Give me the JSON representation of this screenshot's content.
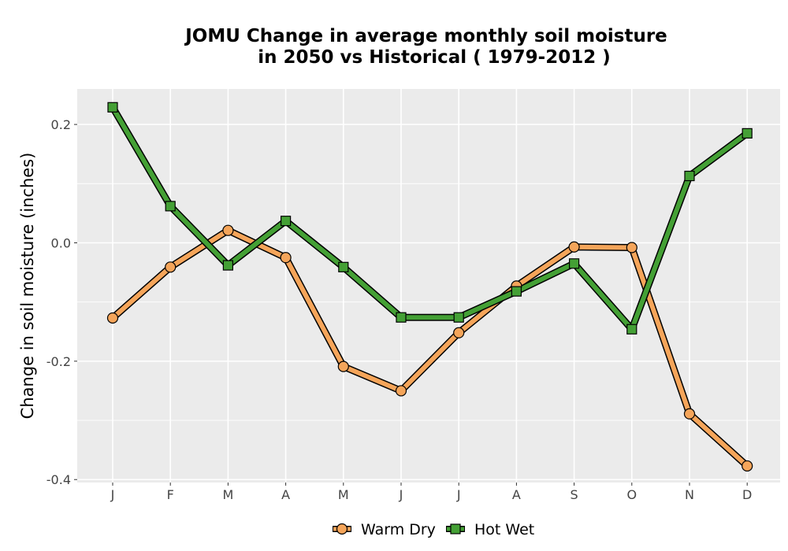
{
  "chart_data": {
    "type": "line",
    "title_line1": "JOMU  Change in average monthly soil moisture",
    "title_line2": "in 2050 vs Historical ( 1979-2012 )",
    "ylabel": "Change in soil moisture (inches)",
    "xlabel": "",
    "categories": [
      "J",
      "F",
      "M",
      "A",
      "M",
      "J",
      "J",
      "A",
      "S",
      "O",
      "N",
      "D"
    ],
    "ylim": [
      -0.405,
      0.26
    ],
    "yticks": [
      -0.4,
      -0.2,
      0.0,
      0.2
    ],
    "ytick_labels": [
      "-0.4",
      "-0.2",
      "0.0",
      "0.2"
    ],
    "grid": true,
    "legend_position": "bottom",
    "series": [
      {
        "name": "Warm Dry",
        "color": "#F5A55A",
        "marker": "circle",
        "values": [
          -0.127,
          -0.041,
          0.021,
          -0.025,
          -0.209,
          -0.25,
          -0.152,
          -0.073,
          -0.007,
          -0.008,
          -0.289,
          -0.377
        ]
      },
      {
        "name": "Hot Wet",
        "color": "#44A035",
        "marker": "square",
        "values": [
          0.229,
          0.062,
          -0.038,
          0.037,
          -0.041,
          -0.126,
          -0.126,
          -0.082,
          -0.035,
          -0.146,
          0.113,
          0.185
        ]
      }
    ]
  }
}
